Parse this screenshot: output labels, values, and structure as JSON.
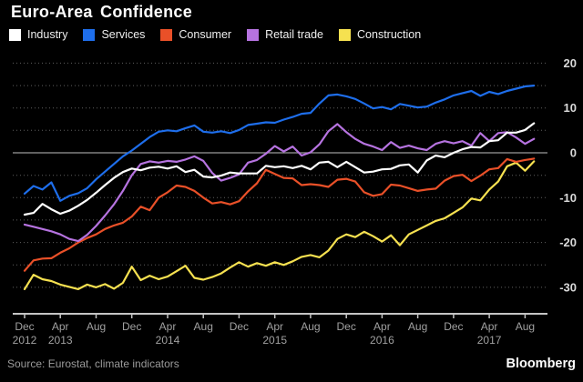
{
  "title": "Euro-Area Confidence",
  "source": "Source: Eurostat, climate indicators",
  "brand": "Bloomberg",
  "colors": {
    "background": "#000000",
    "grid_dotted": "#5f5f5f",
    "grid_zero": "#9a9a9a",
    "axis_line": "#c4c4c4",
    "x_tick_label": "#a0a0a0",
    "y_tick_label": "#d9d9d9",
    "title_text": "#ffffff",
    "legend_text": "#efefef",
    "source_text": "#9b9b9b"
  },
  "chart_data": {
    "type": "line",
    "title": "Euro-Area Confidence",
    "x_unit": "month",
    "x_start": "Dec 2012",
    "x_end": "Sep 2017",
    "points_per_series": 58,
    "ylim": [
      -36,
      21
    ],
    "yticks_labeled": [
      20,
      10,
      0,
      -10,
      -20,
      -30
    ],
    "yticks_minor": [
      15,
      5,
      -5,
      -15,
      -25
    ],
    "grid": "dotted horizontal every 5, solid at 0",
    "legend_position": "top",
    "y_axis_side": "right",
    "x_ticks": [
      {
        "index": 0,
        "month": "Dec",
        "year": "2012"
      },
      {
        "index": 4,
        "month": "Apr",
        "year": "2013"
      },
      {
        "index": 8,
        "month": "Aug"
      },
      {
        "index": 12,
        "month": "Dec"
      },
      {
        "index": 16,
        "month": "Apr",
        "year": "2014"
      },
      {
        "index": 20,
        "month": "Aug"
      },
      {
        "index": 24,
        "month": "Dec"
      },
      {
        "index": 28,
        "month": "Apr",
        "year": "2015"
      },
      {
        "index": 32,
        "month": "Aug"
      },
      {
        "index": 36,
        "month": "Dec"
      },
      {
        "index": 40,
        "month": "Apr",
        "year": "2016"
      },
      {
        "index": 44,
        "month": "Aug"
      },
      {
        "index": 48,
        "month": "Dec"
      },
      {
        "index": 52,
        "month": "Apr",
        "year": "2017"
      },
      {
        "index": 56,
        "month": "Aug"
      }
    ],
    "series": [
      {
        "name": "Construction",
        "color": "#f6e150",
        "values": [
          -30.4,
          -27.2,
          -28.2,
          -28.6,
          -29.4,
          -29.9,
          -30.4,
          -29.4,
          -30.0,
          -29.3,
          -30.3,
          -29.0,
          -25.4,
          -28.4,
          -27.4,
          -28.2,
          -27.6,
          -26.4,
          -25.2,
          -27.9,
          -28.3,
          -27.7,
          -26.9,
          -25.6,
          -24.4,
          -25.4,
          -24.6,
          -25.2,
          -24.4,
          -25.0,
          -24.2,
          -23.2,
          -22.8,
          -23.3,
          -21.8,
          -19.2,
          -18.2,
          -18.8,
          -17.6,
          -18.6,
          -19.8,
          -18.4,
          -20.6,
          -18.2,
          -17.2,
          -16.2,
          -15.2,
          -14.6,
          -13.4,
          -12.2,
          -10.2,
          -10.6,
          -8.2,
          -6.4,
          -3.0,
          -2.2,
          -4.0,
          -1.9
        ]
      },
      {
        "name": "Consumer",
        "color": "#e95028",
        "values": [
          -26.3,
          -24.0,
          -23.6,
          -23.5,
          -22.3,
          -21.3,
          -20.0,
          -19.0,
          -18.2,
          -17.0,
          -16.2,
          -15.6,
          -14.2,
          -12.0,
          -12.8,
          -10.0,
          -8.8,
          -7.3,
          -7.6,
          -8.5,
          -10.0,
          -11.3,
          -11.0,
          -11.5,
          -10.8,
          -8.6,
          -6.8,
          -3.8,
          -4.7,
          -5.6,
          -5.7,
          -7.2,
          -7.0,
          -7.2,
          -7.6,
          -6.0,
          -5.8,
          -6.4,
          -8.8,
          -9.6,
          -9.2,
          -7.1,
          -7.3,
          -7.9,
          -8.5,
          -8.2,
          -8.0,
          -6.2,
          -5.2,
          -4.9,
          -6.3,
          -5.1,
          -3.7,
          -3.4,
          -1.4,
          -2.0,
          -1.6,
          -1.3
        ]
      },
      {
        "name": "Retail trade",
        "color": "#b673e0",
        "values": [
          -16.0,
          -16.5,
          -17.0,
          -17.5,
          -18.2,
          -19.2,
          -19.7,
          -18.3,
          -16.3,
          -14.0,
          -11.5,
          -8.5,
          -5.0,
          -2.5,
          -1.9,
          -2.2,
          -1.8,
          -2.0,
          -1.5,
          -0.8,
          -1.8,
          -4.5,
          -6.2,
          -5.6,
          -4.8,
          -2.2,
          -1.6,
          -0.2,
          1.5,
          0.3,
          1.4,
          -0.6,
          0.1,
          1.9,
          4.8,
          6.4,
          4.6,
          3.1,
          2.0,
          1.4,
          0.6,
          2.4,
          1.1,
          1.6,
          1.0,
          0.6,
          2.0,
          2.6,
          2.1,
          2.6,
          1.6,
          4.4,
          2.6,
          4.4,
          4.6,
          3.4,
          2.0,
          3.1
        ]
      },
      {
        "name": "Services",
        "color": "#1e6eeb",
        "values": [
          -9.1,
          -7.4,
          -8.2,
          -6.6,
          -10.7,
          -9.6,
          -9.0,
          -7.9,
          -5.9,
          -4.2,
          -2.5,
          -0.8,
          0.5,
          2.0,
          3.5,
          4.7,
          5.0,
          4.8,
          5.5,
          6.1,
          4.7,
          4.5,
          4.8,
          4.4,
          5.1,
          6.2,
          6.5,
          6.8,
          6.7,
          7.4,
          8.0,
          8.7,
          8.9,
          11.0,
          12.8,
          13.0,
          12.6,
          12.0,
          11.0,
          9.9,
          10.2,
          9.7,
          10.9,
          10.5,
          10.1,
          10.3,
          11.2,
          11.9,
          12.8,
          13.3,
          13.8,
          12.7,
          13.6,
          13.1,
          13.8,
          14.3,
          14.8,
          15.0
        ]
      },
      {
        "name": "Industry",
        "color": "#ffffff",
        "values": [
          -13.8,
          -13.4,
          -11.4,
          -12.6,
          -13.6,
          -12.9,
          -11.8,
          -10.5,
          -8.9,
          -7.2,
          -5.6,
          -4.3,
          -3.5,
          -3.9,
          -3.3,
          -3.1,
          -3.5,
          -3.0,
          -4.3,
          -3.8,
          -5.3,
          -5.5,
          -5.1,
          -4.4,
          -4.6,
          -4.6,
          -4.6,
          -2.9,
          -3.2,
          -3.0,
          -3.4,
          -2.9,
          -3.7,
          -2.2,
          -2.0,
          -3.2,
          -2.0,
          -3.2,
          -4.4,
          -4.2,
          -3.7,
          -3.6,
          -2.8,
          -2.6,
          -4.4,
          -1.7,
          -0.6,
          -1.0,
          0.0,
          0.8,
          1.3,
          1.2,
          2.6,
          2.8,
          4.5,
          4.5,
          5.1,
          6.6
        ]
      }
    ],
    "legend_order": [
      "Industry",
      "Services",
      "Consumer",
      "Retail trade",
      "Construction"
    ]
  }
}
